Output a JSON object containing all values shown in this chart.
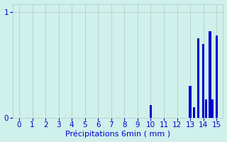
{
  "title": "",
  "xlabel": "Précipitations 6min ( mm )",
  "ylabel": "",
  "background_color": "#cff0eb",
  "bar_color": "#0000cc",
  "xlim": [
    -0.5,
    15.5
  ],
  "ylim": [
    0,
    1.08
  ],
  "yticks": [
    0,
    1
  ],
  "xticks": [
    0,
    1,
    2,
    3,
    4,
    5,
    6,
    7,
    8,
    9,
    10,
    11,
    12,
    13,
    14,
    15
  ],
  "bar_positions": [
    10.0,
    13.0,
    13.3,
    13.6,
    14.0,
    14.2,
    14.5,
    14.7,
    15.0
  ],
  "bar_heights": [
    0.12,
    0.3,
    0.1,
    0.75,
    0.7,
    0.17,
    0.82,
    0.17,
    0.78
  ],
  "bar_width": 0.18,
  "grid_color": "#b0c8c4",
  "tick_color": "#0000cc",
  "label_color": "#0000cc",
  "font_size": 7.5
}
